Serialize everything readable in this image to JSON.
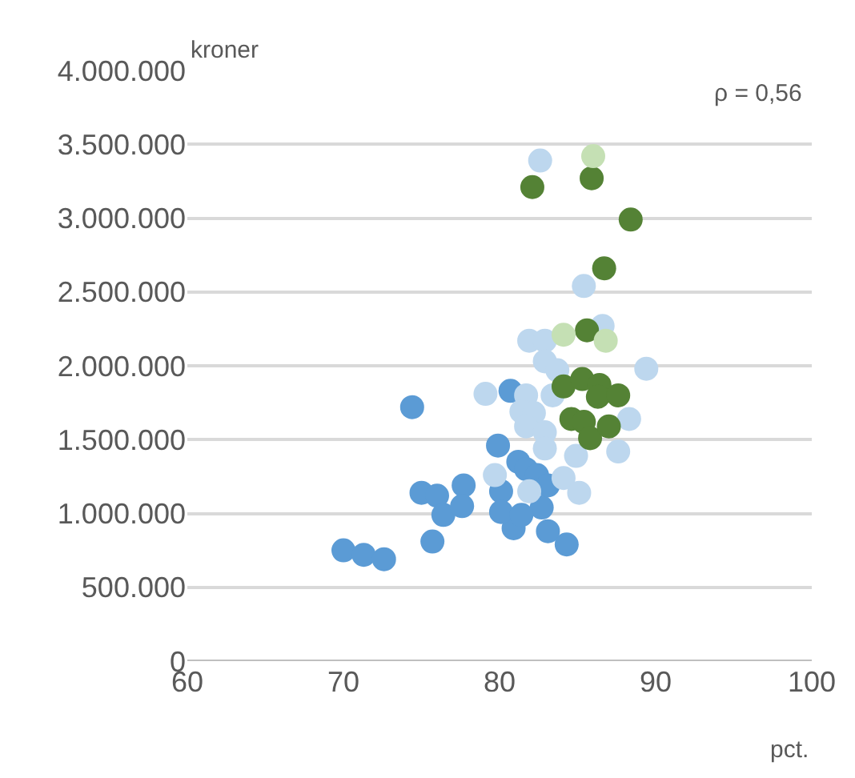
{
  "chart_data": {
    "type": "scatter",
    "xlabel": "pct.",
    "ylabel": "kroner",
    "annotations": [
      "ρ = 0,56"
    ],
    "xlim": [
      60,
      100
    ],
    "xticks": [
      60,
      70,
      80,
      90,
      100
    ],
    "ylim": [
      0,
      4000000
    ],
    "yticks": [
      {
        "value": 0,
        "label": "0"
      },
      {
        "value": 500000,
        "label": "500.000"
      },
      {
        "value": 1000000,
        "label": "1.000.000"
      },
      {
        "value": 1500000,
        "label": "1.500.000"
      },
      {
        "value": 2000000,
        "label": "2.000.000"
      },
      {
        "value": 2500000,
        "label": "2.500.000"
      },
      {
        "value": 3000000,
        "label": "3.000.000"
      },
      {
        "value": 3500000,
        "label": "3.500.000"
      },
      {
        "value": 4000000,
        "label": "4.000.000"
      }
    ],
    "grid": "y",
    "marker": "circle",
    "series": [
      {
        "color": "#5b9bd5",
        "x": [
          70.0,
          71.3,
          72.6,
          74.4,
          75.0,
          76.0,
          76.4,
          77.7,
          77.6,
          75.7,
          79.9,
          80.7,
          81.2,
          81.7,
          82.4,
          80.1,
          80.9,
          83.1,
          84.3,
          82.7,
          80.1,
          81.4,
          83.1
        ],
        "values": [
          750000,
          720000,
          690000,
          1720000,
          1140000,
          1120000,
          990000,
          1190000,
          1050000,
          810000,
          1460000,
          1830000,
          1350000,
          1300000,
          1260000,
          1150000,
          900000,
          880000,
          790000,
          1040000,
          1010000,
          990000,
          1190000
        ]
      },
      {
        "color": "#bdd7ee",
        "x": [
          82.6,
          85.4,
          86.6,
          89.4,
          81.9,
          82.9,
          82.9,
          79.1,
          88.3,
          87.6,
          83.7,
          81.7,
          81.4,
          82.2,
          81.7,
          82.9,
          82.9,
          83.4,
          84.9,
          84.1,
          85.1,
          79.7,
          81.9
        ],
        "values": [
          3390000,
          2540000,
          2270000,
          1980000,
          2170000,
          2170000,
          2030000,
          1810000,
          1640000,
          1420000,
          1970000,
          1800000,
          1690000,
          1680000,
          1590000,
          1550000,
          1440000,
          1800000,
          1390000,
          1240000,
          1140000,
          1260000,
          1150000
        ]
      },
      {
        "color": "#548235",
        "x": [
          82.1,
          85.9,
          88.4,
          86.7,
          85.6,
          84.1,
          85.3,
          86.4,
          86.3,
          87.6,
          84.6,
          85.4,
          85.8,
          87.0
        ],
        "values": [
          3210000,
          3270000,
          2990000,
          2660000,
          2240000,
          1860000,
          1910000,
          1870000,
          1790000,
          1800000,
          1640000,
          1620000,
          1510000,
          1590000
        ]
      },
      {
        "color": "#c5e0b4",
        "x": [
          86.0,
          84.1,
          86.8
        ],
        "values": [
          3420000,
          2210000,
          2170000
        ]
      }
    ]
  }
}
